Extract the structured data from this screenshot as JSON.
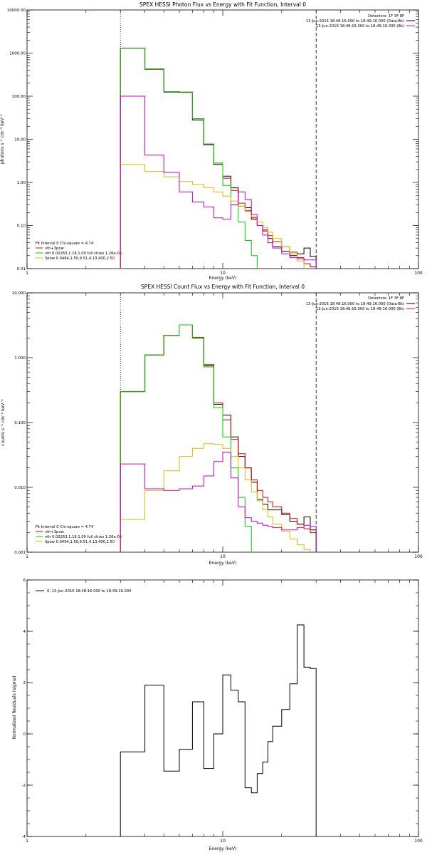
{
  "chart_data": [
    {
      "type": "line",
      "step": true,
      "title": "SPEX HESSI Photon Flux vs Energy with Fit Function, Interval 0",
      "xlabel": "Energy (keV)",
      "ylabel": "photons s⁻¹ cm⁻² keV⁻¹",
      "xscale": "log",
      "yscale": "log",
      "xlim": [
        1,
        100
      ],
      "ylim": [
        0.01,
        10000
      ],
      "xticks": [
        {
          "v": 1,
          "label": "1"
        },
        {
          "v": 10,
          "label": "10"
        },
        {
          "v": 100,
          "label": "100"
        }
      ],
      "yticks": [
        {
          "v": 0.01,
          "label": "0.01"
        },
        {
          "v": 0.1,
          "label": "0.10"
        },
        {
          "v": 1,
          "label": "1.00"
        },
        {
          "v": 10,
          "label": "10.00"
        },
        {
          "v": 100,
          "label": "100.00"
        },
        {
          "v": 1000,
          "label": "1000.00"
        },
        {
          "v": 10000,
          "label": "10000.00"
        }
      ],
      "fit_range_keV": [
        3,
        30
      ],
      "detectors": "Detectors: 1F 3F 8F",
      "top_legend": [
        {
          "text": "13-Jun-2016 18:48:16.000 to 18:49:16.000 (Data-Bk)",
          "color": "#000000"
        },
        {
          "text": "13-Jun-2016 18:48:16.000 to 18:49:16.000 (Bk)",
          "color": "#cc00cc"
        }
      ],
      "fit_legend": {
        "header": "Fit Interval 0   Chi-square = 4.74",
        "items": [
          {
            "text": "vth+3pow",
            "color": "#dd0000"
          },
          {
            "text": "vth 0.00263,1.18,1.00  full chian 1.26e-04",
            "color": "#00cc00"
          },
          {
            "text": "3pow 0.0494,1.50,9.51,4.13,400,2.50",
            "color": "#ddbb00"
          }
        ]
      },
      "bin_edges": [
        3,
        4,
        5,
        6,
        7,
        8,
        9,
        10,
        11,
        12,
        13,
        14,
        15,
        16,
        17,
        18,
        20,
        22,
        24,
        26,
        28,
        30
      ],
      "series": [
        {
          "name": "Data-Bk",
          "color": "#000000",
          "values": [
            1300,
            420,
            125,
            122,
            28,
            7.5,
            2.6,
            1.4,
            0.75,
            0.28,
            0.26,
            0.14,
            0.1,
            0.075,
            0.05,
            0.032,
            0.025,
            0.02,
            0.022,
            0.03,
            0.019
          ]
        },
        {
          "name": "vth+3pow",
          "color": "#dd0000",
          "values": [
            1300,
            430,
            128,
            124,
            30,
            7.8,
            2.8,
            1.25,
            0.65,
            0.33,
            0.22,
            0.15,
            0.1,
            0.08,
            0.058,
            0.042,
            0.032,
            0.024,
            0.018,
            0.013,
            0.011
          ]
        },
        {
          "name": "vth",
          "color": "#00cc00",
          "values": [
            1300,
            430,
            128,
            124,
            30,
            7.8,
            2.8,
            0.85,
            0.3,
            0.12,
            0.045,
            0.02,
            0.01
          ]
        },
        {
          "name": "3pow",
          "color": "#ddbb00",
          "values": [
            2.6,
            1.8,
            1.35,
            1.05,
            0.9,
            0.75,
            0.6,
            0.48,
            0.37,
            0.28,
            0.21,
            0.16,
            0.12,
            0.09,
            0.07,
            0.05,
            0.032,
            0.022,
            0.015,
            0.01
          ]
        },
        {
          "name": "Bk",
          "color": "#cc00cc",
          "values": [
            100,
            4.3,
            1.7,
            0.6,
            0.35,
            0.27,
            0.15,
            0.14,
            0.3,
            0.6,
            0.4,
            0.18,
            0.1,
            0.06,
            0.04,
            0.03,
            0.022,
            0.018,
            0.017,
            0.016,
            0.016
          ]
        }
      ]
    },
    {
      "type": "line",
      "step": true,
      "title": "SPEX HESSI Count Flux vs Energy with Fit Function, Interval 0",
      "xlabel": "Energy (keV)",
      "ylabel": "counts s⁻¹ cm⁻² keV⁻¹",
      "xscale": "log",
      "yscale": "log",
      "xlim": [
        1,
        100
      ],
      "ylim": [
        0.001,
        10
      ],
      "xticks": [
        {
          "v": 1,
          "label": "1"
        },
        {
          "v": 10,
          "label": "10"
        },
        {
          "v": 100,
          "label": "100"
        }
      ],
      "yticks": [
        {
          "v": 0.001,
          "label": "0.001"
        },
        {
          "v": 0.01,
          "label": "0.010"
        },
        {
          "v": 0.1,
          "label": "0.100"
        },
        {
          "v": 1,
          "label": "1.000"
        },
        {
          "v": 10,
          "label": "10.000"
        }
      ],
      "fit_range_keV": [
        3,
        30
      ],
      "detectors": "Detectors: 1F 3F 8F",
      "top_legend": [
        {
          "text": "13-Jun-2016 18:48:16.000 to 18:49:16.000 (Data-Bk)",
          "color": "#000000"
        },
        {
          "text": "13-Jun-2016 18:48:16.000 to 18:49:16.000 (Bk)",
          "color": "#cc00cc"
        }
      ],
      "fit_legend": {
        "header": "Fit Interval 0   Chi-square = 4.74",
        "items": [
          {
            "text": "vth+3pow",
            "color": "#dd0000"
          },
          {
            "text": "vth 0.00263,1.18,1.00  full chian 1.26e-04",
            "color": "#00cc00"
          },
          {
            "text": "3pow 0.0494,1.50,9.51,4.13,400,2.50",
            "color": "#ddbb00"
          }
        ]
      },
      "bin_edges": [
        3,
        4,
        5,
        6,
        7,
        8,
        9,
        10,
        11,
        12,
        13,
        14,
        15,
        16,
        17,
        18,
        20,
        22,
        24,
        26,
        28,
        30
      ],
      "series": [
        {
          "name": "Data-Bk",
          "color": "#000000",
          "values": [
            0.3,
            1.1,
            2.2,
            3.2,
            2.0,
            0.75,
            0.19,
            0.13,
            0.06,
            0.03,
            0.02,
            0.012,
            0.0065,
            0.0055,
            0.0045,
            0.0045,
            0.0038,
            0.003,
            0.0027,
            0.0035,
            0.0022
          ]
        },
        {
          "name": "vth+3pow",
          "color": "#dd0000",
          "values": [
            0.3,
            1.1,
            2.2,
            3.2,
            2.05,
            0.78,
            0.2,
            0.11,
            0.055,
            0.033,
            0.02,
            0.013,
            0.009,
            0.007,
            0.006,
            0.005,
            0.004,
            0.0033,
            0.0027,
            0.0023,
            0.002
          ]
        },
        {
          "name": "vth",
          "color": "#00cc00",
          "values": [
            0.3,
            1.1,
            2.2,
            3.2,
            2.0,
            0.72,
            0.17,
            0.06,
            0.02,
            0.007,
            0.0025,
            0.001
          ]
        },
        {
          "name": "3pow",
          "color": "#ddbb00",
          "values": [
            0.0032,
            0.009,
            0.018,
            0.03,
            0.04,
            0.047,
            0.046,
            0.04,
            0.03,
            0.02,
            0.013,
            0.0085,
            0.0062,
            0.0045,
            0.0035,
            0.0027,
            0.0021,
            0.0016,
            0.0013,
            0.0011
          ]
        },
        {
          "name": "Bk",
          "color": "#cc00cc",
          "values": [
            0.023,
            0.0095,
            0.009,
            0.0095,
            0.0105,
            0.015,
            0.025,
            0.035,
            0.014,
            0.005,
            0.0034,
            0.003,
            0.0028,
            0.0026,
            0.0025,
            0.0024,
            0.0022,
            0.0022,
            0.0024,
            0.0026,
            0.0025
          ]
        }
      ]
    },
    {
      "type": "line",
      "step": true,
      "xlabel": "Energy (keV)",
      "ylabel": "Normalized Residuals (sigma)",
      "xscale": "log",
      "yscale": "linear",
      "xlim": [
        1,
        100
      ],
      "ylim": [
        -4,
        6
      ],
      "xticks": [
        {
          "v": 1,
          "label": "1"
        },
        {
          "v": 10,
          "label": "10"
        },
        {
          "v": 100,
          "label": "100"
        }
      ],
      "yticks": [
        {
          "v": -4,
          "label": "-4"
        },
        {
          "v": -2,
          "label": "-2"
        },
        {
          "v": 0,
          "label": "0"
        },
        {
          "v": 2,
          "label": "2"
        },
        {
          "v": 4,
          "label": "4"
        },
        {
          "v": 6,
          "label": "6"
        }
      ],
      "legend": [
        {
          "text": "0, 13-Jun-2016 18:48:16.000 to 18:49:16.000",
          "color": "#000000"
        }
      ],
      "bin_edges": [
        3,
        4,
        5,
        6,
        7,
        8,
        9,
        10,
        11,
        12,
        13,
        14,
        15,
        16,
        17,
        18,
        20,
        22,
        24,
        26,
        28,
        30
      ],
      "series": [
        {
          "name": "Residuals",
          "color": "#000000",
          "values": [
            -0.7,
            1.9,
            -1.45,
            -0.6,
            1.25,
            -1.35,
            0.0,
            2.3,
            1.7,
            1.25,
            -2.1,
            -2.3,
            -1.55,
            -1.1,
            -0.3,
            0.3,
            0.95,
            1.95,
            4.25,
            2.6,
            2.55
          ]
        }
      ]
    }
  ]
}
